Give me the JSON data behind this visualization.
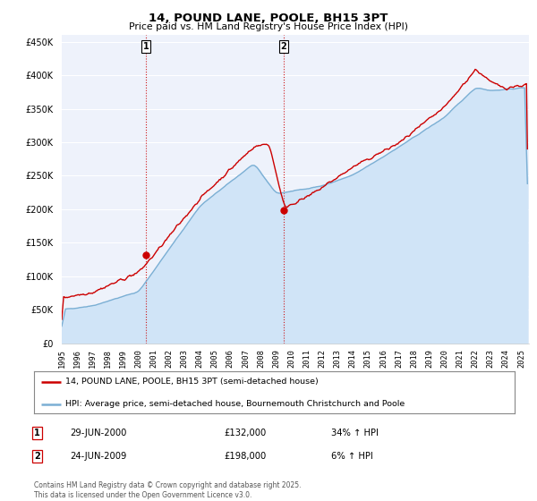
{
  "title": "14, POUND LANE, POOLE, BH15 3PT",
  "subtitle": "Price paid vs. HM Land Registry's House Price Index (HPI)",
  "ylabel_ticks": [
    "£0",
    "£50K",
    "£100K",
    "£150K",
    "£200K",
    "£250K",
    "£300K",
    "£350K",
    "£400K",
    "£450K"
  ],
  "ytick_vals": [
    0,
    50000,
    100000,
    150000,
    200000,
    250000,
    300000,
    350000,
    400000,
    450000
  ],
  "ylim": [
    0,
    460000
  ],
  "xlim_start": 1995.3,
  "xlim_end": 2025.5,
  "sale1_x": 2000.49,
  "sale1_y": 132000,
  "sale2_x": 2009.48,
  "sale2_y": 198000,
  "vline1_x": 2000.49,
  "vline2_x": 2009.48,
  "property_color": "#cc0000",
  "hpi_color": "#7bafd4",
  "hpi_fill_color": "#d0e4f7",
  "legend_property": "14, POUND LANE, POOLE, BH15 3PT (semi-detached house)",
  "legend_hpi": "HPI: Average price, semi-detached house, Bournemouth Christchurch and Poole",
  "annotation1_date": "29-JUN-2000",
  "annotation1_price": "£132,000",
  "annotation1_hpi": "34% ↑ HPI",
  "annotation2_date": "24-JUN-2009",
  "annotation2_price": "£198,000",
  "annotation2_hpi": "6% ↑ HPI",
  "footnote1": "Contains HM Land Registry data © Crown copyright and database right 2025.",
  "footnote2": "This data is licensed under the Open Government Licence v3.0.",
  "background_color": "#ffffff",
  "plot_bg_color": "#eef2fb"
}
